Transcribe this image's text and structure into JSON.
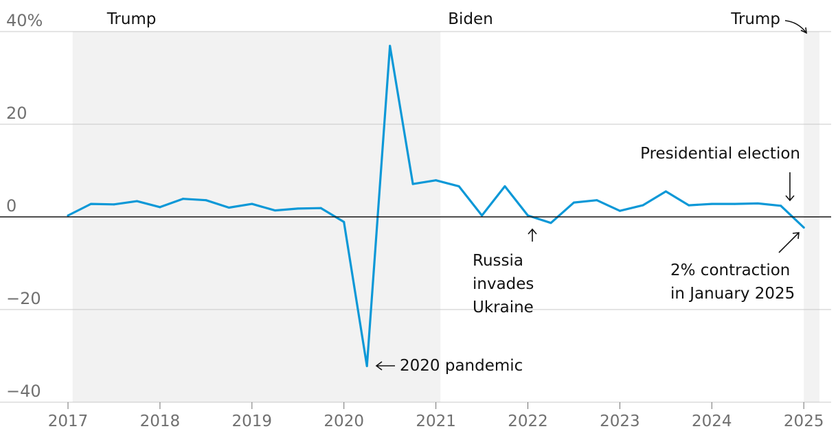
{
  "chart_data": {
    "type": "line",
    "ylim": [
      -40,
      40
    ],
    "yticks": [
      {
        "value": 40,
        "label": "40%"
      },
      {
        "value": 20,
        "label": "20"
      },
      {
        "value": 0,
        "label": "0"
      },
      {
        "value": -20,
        "label": "−20"
      },
      {
        "value": -40,
        "label": "−40"
      }
    ],
    "xlim": [
      2016.98,
      2025.28
    ],
    "xticks": [
      {
        "value": 2017,
        "label": "2017"
      },
      {
        "value": 2018,
        "label": "2018"
      },
      {
        "value": 2019,
        "label": "2019"
      },
      {
        "value": 2020,
        "label": "2020"
      },
      {
        "value": 2021,
        "label": "2021"
      },
      {
        "value": 2022,
        "label": "2022"
      },
      {
        "value": 2023,
        "label": "2023"
      },
      {
        "value": 2024,
        "label": "2024"
      },
      {
        "value": 2025,
        "label": "2025"
      }
    ],
    "grid": true,
    "series": [
      {
        "color": "#0c98d7",
        "points": [
          {
            "x": 2017.0,
            "y": 0.3
          },
          {
            "x": 2017.25,
            "y": 2.8
          },
          {
            "x": 2017.5,
            "y": 2.7
          },
          {
            "x": 2017.75,
            "y": 3.4
          },
          {
            "x": 2018.0,
            "y": 2.1
          },
          {
            "x": 2018.25,
            "y": 3.9
          },
          {
            "x": 2018.5,
            "y": 3.6
          },
          {
            "x": 2018.75,
            "y": 2.0
          },
          {
            "x": 2019.0,
            "y": 2.8
          },
          {
            "x": 2019.25,
            "y": 1.4
          },
          {
            "x": 2019.5,
            "y": 1.8
          },
          {
            "x": 2019.75,
            "y": 1.9
          },
          {
            "x": 2020.0,
            "y": -1.1
          },
          {
            "x": 2020.25,
            "y": -32.2
          },
          {
            "x": 2020.5,
            "y": 36.9
          },
          {
            "x": 2020.75,
            "y": 7.1
          },
          {
            "x": 2021.0,
            "y": 7.9
          },
          {
            "x": 2021.25,
            "y": 6.6
          },
          {
            "x": 2021.5,
            "y": 0.3
          },
          {
            "x": 2021.75,
            "y": 6.6
          },
          {
            "x": 2022.0,
            "y": 0.3
          },
          {
            "x": 2022.25,
            "y": -1.3
          },
          {
            "x": 2022.5,
            "y": 3.1
          },
          {
            "x": 2022.75,
            "y": 3.6
          },
          {
            "x": 2023.0,
            "y": 1.3
          },
          {
            "x": 2023.25,
            "y": 2.5
          },
          {
            "x": 2023.5,
            "y": 5.5
          },
          {
            "x": 2023.75,
            "y": 2.5
          },
          {
            "x": 2024.0,
            "y": 2.8
          },
          {
            "x": 2024.25,
            "y": 2.8
          },
          {
            "x": 2024.5,
            "y": 2.9
          },
          {
            "x": 2024.75,
            "y": 2.4
          },
          {
            "x": 2025.0,
            "y": -2.3
          }
        ]
      }
    ],
    "bands": [
      {
        "label": "Trump",
        "x_start": 2017.05,
        "x_end": 2021.05,
        "fill": "#f2f2f2"
      },
      {
        "label": "Biden",
        "x_start": 2021.05,
        "x_end": 2025.0,
        "fill": "#ffffff"
      },
      {
        "label": "Trump",
        "x_start": 2025.0,
        "x_end": 2025.17,
        "fill": "#f2f2f2"
      }
    ],
    "annotations": [
      {
        "id": "pandemic",
        "text": "2020 pandemic"
      },
      {
        "id": "russia",
        "lines": [
          "Russia",
          "invades",
          "Ukraine"
        ]
      },
      {
        "id": "election",
        "text": "Presidential election"
      },
      {
        "id": "contraction",
        "lines": [
          "2% contraction",
          "in January 2025"
        ]
      }
    ]
  }
}
